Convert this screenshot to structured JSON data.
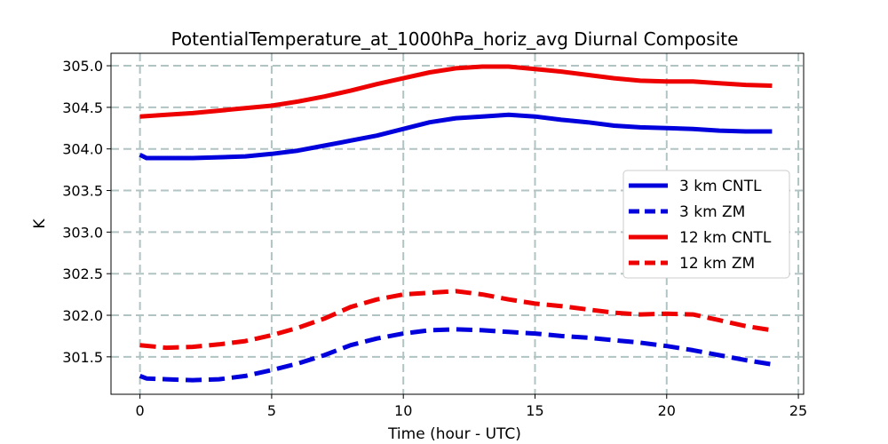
{
  "chart_data": {
    "type": "line",
    "title": "PotentialTemperature_at_1000hPa_horiz_avg Diurnal Composite",
    "xlabel": "Time (hour - UTC)",
    "ylabel": "K",
    "xlim": [
      -1.1,
      25.2
    ],
    "ylim": [
      301.05,
      305.15
    ],
    "xticks": [
      0,
      5,
      10,
      15,
      20,
      25
    ],
    "yticks": [
      301.5,
      302.0,
      302.5,
      303.0,
      303.5,
      304.0,
      304.5,
      305.0
    ],
    "xtick_labels": [
      "0",
      "5",
      "10",
      "15",
      "20",
      "25"
    ],
    "ytick_labels": [
      "301.5",
      "302.0",
      "302.5",
      "303.0",
      "303.5",
      "304.0",
      "304.5",
      "305.0"
    ],
    "grid": true,
    "legend_position": "center-right",
    "series": [
      {
        "name": "3 km CNTL",
        "color": "#0000dd",
        "style": "solid",
        "x": [
          0,
          0.25,
          1,
          2,
          3,
          4,
          5,
          6,
          7,
          7.5,
          8,
          9,
          10,
          11,
          12,
          13,
          14,
          15,
          16,
          17,
          18,
          19,
          20,
          21,
          22,
          23,
          24
        ],
        "y": [
          303.93,
          303.89,
          303.89,
          303.89,
          303.9,
          303.91,
          303.94,
          303.98,
          304.04,
          304.07,
          304.1,
          304.16,
          304.24,
          304.32,
          304.37,
          304.39,
          304.41,
          304.39,
          304.35,
          304.32,
          304.28,
          304.26,
          304.25,
          304.24,
          304.22,
          304.21,
          304.21
        ]
      },
      {
        "name": "3 km ZM",
        "color": "#0000dd",
        "style": "dashed",
        "x": [
          0,
          0.25,
          1,
          2,
          3,
          4,
          5,
          6,
          7,
          8,
          9,
          10,
          11,
          12,
          13,
          14,
          15,
          16,
          17,
          18,
          19,
          20,
          21,
          22,
          23,
          24
        ],
        "y": [
          301.27,
          301.24,
          301.23,
          301.22,
          301.23,
          301.27,
          301.34,
          301.42,
          301.52,
          301.64,
          301.72,
          301.78,
          301.82,
          301.83,
          301.82,
          301.8,
          301.78,
          301.75,
          301.73,
          301.7,
          301.67,
          301.63,
          301.58,
          301.52,
          301.46,
          301.41
        ]
      },
      {
        "name": "12 km CNTL",
        "color": "#ee0000",
        "style": "solid",
        "x": [
          0,
          1,
          2,
          3,
          4,
          5,
          6,
          7,
          8,
          9,
          10,
          11,
          12,
          13,
          14,
          15,
          16,
          17,
          18,
          19,
          20,
          21,
          22,
          23,
          24
        ],
        "y": [
          304.39,
          304.41,
          304.43,
          304.46,
          304.49,
          304.52,
          304.57,
          304.63,
          304.7,
          304.78,
          304.85,
          304.92,
          304.97,
          304.99,
          304.99,
          304.96,
          304.93,
          304.89,
          304.85,
          304.82,
          304.81,
          304.81,
          304.79,
          304.77,
          304.76
        ]
      },
      {
        "name": "12 km ZM",
        "color": "#ee0000",
        "style": "dashed",
        "x": [
          0,
          1,
          2,
          3,
          4,
          5,
          6,
          7,
          8,
          9,
          10,
          11,
          12,
          13,
          14,
          15,
          16,
          17,
          18,
          19,
          20,
          21,
          22,
          23,
          24
        ],
        "y": [
          301.64,
          301.61,
          301.62,
          301.65,
          301.69,
          301.76,
          301.85,
          301.96,
          302.1,
          302.19,
          302.25,
          302.27,
          302.29,
          302.25,
          302.19,
          302.14,
          302.11,
          302.07,
          302.03,
          302.01,
          302.02,
          302.01,
          301.94,
          301.87,
          301.82
        ]
      }
    ]
  }
}
